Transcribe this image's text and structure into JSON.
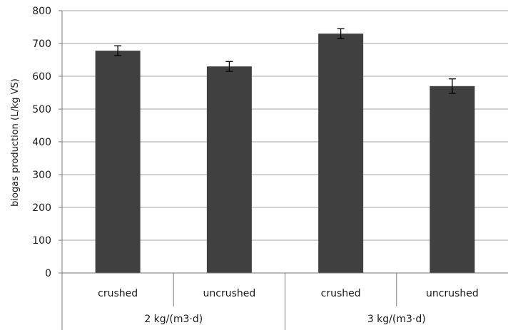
{
  "chart_data": {
    "type": "bar",
    "title": "",
    "xlabel": "",
    "ylabel": "biogas production (L/kg VS)",
    "ylim": [
      0,
      800
    ],
    "yticks": [
      0,
      100,
      200,
      300,
      400,
      500,
      600,
      700,
      800
    ],
    "grid": true,
    "groups": [
      "2 kg/(m3·d)",
      "3 kg/(m3·d)"
    ],
    "categories": [
      "crushed",
      "uncrushed",
      "crushed",
      "uncrushed"
    ],
    "category_group": [
      0,
      0,
      1,
      1
    ],
    "values": [
      678,
      630,
      730,
      570
    ],
    "errors": [
      15,
      15,
      15,
      22
    ],
    "bar_color": "#404040",
    "grid_color": "#a0a0a0"
  }
}
